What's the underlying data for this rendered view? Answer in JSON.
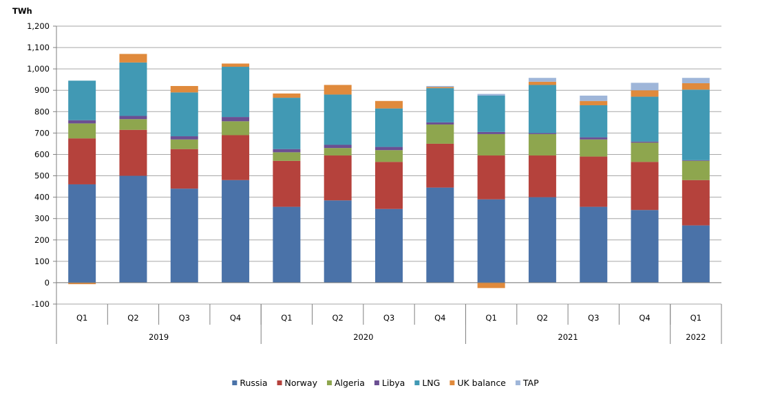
{
  "chart_data": {
    "type": "bar",
    "stacked": true,
    "unit_label": "TWh",
    "ylim": [
      -100,
      1200
    ],
    "y_ticks": [
      "-100",
      "0",
      "100",
      "200",
      "300",
      "400",
      "500",
      "600",
      "700",
      "800",
      "900",
      "1,000",
      "1,100",
      "1,200"
    ],
    "grid": true,
    "legend_position": "bottom",
    "categories": [
      "Q1",
      "Q2",
      "Q3",
      "Q4",
      "Q1",
      "Q2",
      "Q3",
      "Q4",
      "Q1",
      "Q2",
      "Q3",
      "Q4",
      "Q1"
    ],
    "year_groups": [
      {
        "label": "2019",
        "count": 4
      },
      {
        "label": "2020",
        "count": 4
      },
      {
        "label": "2021",
        "count": 4
      },
      {
        "label": "2022",
        "count": 1
      }
    ],
    "series": [
      {
        "name": "Russia",
        "color": "#4a72a8",
        "values": [
          460,
          500,
          440,
          480,
          355,
          385,
          345,
          445,
          390,
          400,
          355,
          340,
          268
        ]
      },
      {
        "name": "Norway",
        "color": "#b5423c",
        "values": [
          215,
          215,
          185,
          210,
          215,
          210,
          220,
          205,
          205,
          195,
          235,
          225,
          212
        ]
      },
      {
        "name": "Algeria",
        "color": "#8ea64e",
        "values": [
          70,
          50,
          45,
          65,
          40,
          35,
          55,
          90,
          100,
          100,
          80,
          90,
          90
        ]
      },
      {
        "name": "Libya",
        "color": "#6b4f92",
        "values": [
          15,
          15,
          15,
          20,
          15,
          15,
          15,
          10,
          10,
          5,
          10,
          5,
          3
        ]
      },
      {
        "name": "LNG",
        "color": "#4199b4",
        "values": [
          185,
          250,
          205,
          235,
          240,
          235,
          180,
          160,
          170,
          225,
          150,
          210,
          330
        ]
      },
      {
        "name": "UK balance",
        "color": "#e08a3c",
        "values": [
          -7,
          40,
          30,
          15,
          20,
          45,
          35,
          5,
          -25,
          15,
          20,
          30,
          30
        ]
      },
      {
        "name": "TAP",
        "color": "#9fb6d9",
        "values": [
          0,
          0,
          0,
          0,
          0,
          0,
          0,
          5,
          8,
          18,
          25,
          35,
          25
        ]
      }
    ]
  }
}
